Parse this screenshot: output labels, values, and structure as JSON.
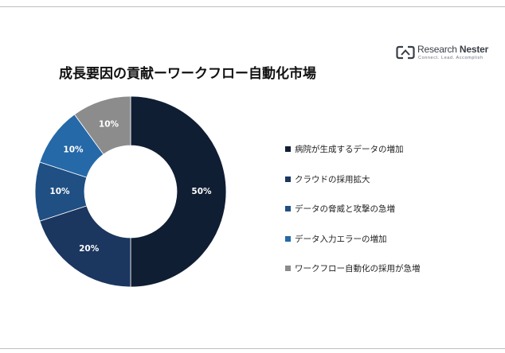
{
  "brand": {
    "name_part1": "Research",
    "name_part2": "Nester",
    "tagline": "Connect. Lead. Accomplish"
  },
  "chart_data": {
    "type": "pie",
    "variant": "donut",
    "title": "成長要因の貢献ーワークフロー自動化市場",
    "legend_position": "right",
    "categories": [
      "病院が生成するデータの増加",
      "クラウドの採用拡大",
      "データの脅威と攻撃の急増",
      "データ入力エラーの増加",
      "ワークフロー自動化の採用が急増"
    ],
    "values": [
      50,
      20,
      10,
      10,
      10
    ],
    "value_labels": [
      "50%",
      "20%",
      "10%",
      "10%",
      "10%"
    ],
    "colors": [
      "#0f1e33",
      "#1b365f",
      "#1f4f83",
      "#2569a8",
      "#8c8c8c"
    ]
  }
}
